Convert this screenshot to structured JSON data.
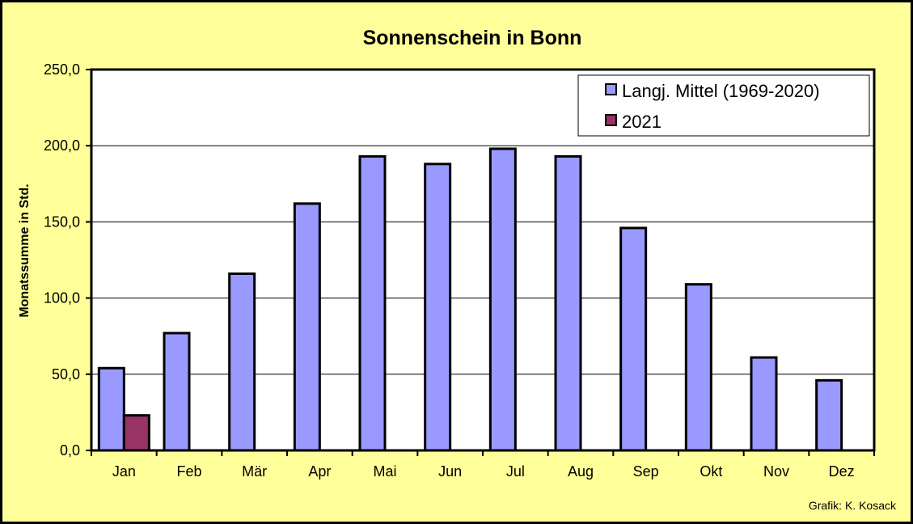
{
  "chart_data": {
    "type": "bar",
    "title": "Sonnenschein in Bonn",
    "xlabel": "",
    "ylabel": "Monatssumme in Std.",
    "ylim": [
      0,
      250
    ],
    "yticks": [
      "0,0",
      "50,0",
      "100,0",
      "150,0",
      "200,0",
      "250,0"
    ],
    "ytick_values": [
      0,
      50,
      100,
      150,
      200,
      250
    ],
    "categories": [
      "Jan",
      "Feb",
      "Mär",
      "Apr",
      "Mai",
      "Jun",
      "Jul",
      "Aug",
      "Sep",
      "Okt",
      "Nov",
      "Dez"
    ],
    "series": [
      {
        "name": "Langj. Mittel (1969-2020)",
        "color": "#9999ff",
        "values": [
          54,
          77,
          116,
          162,
          193,
          188,
          198,
          193,
          146,
          109,
          61,
          46
        ]
      },
      {
        "name": "2021",
        "color": "#993366",
        "values": [
          23,
          null,
          null,
          null,
          null,
          null,
          null,
          null,
          null,
          null,
          null,
          null
        ]
      }
    ],
    "grid": true,
    "legend_position": "top-right",
    "background_color": "#ffff99",
    "plot_background": "#ffffff"
  },
  "credit": "Grafik:  K. Kosack"
}
